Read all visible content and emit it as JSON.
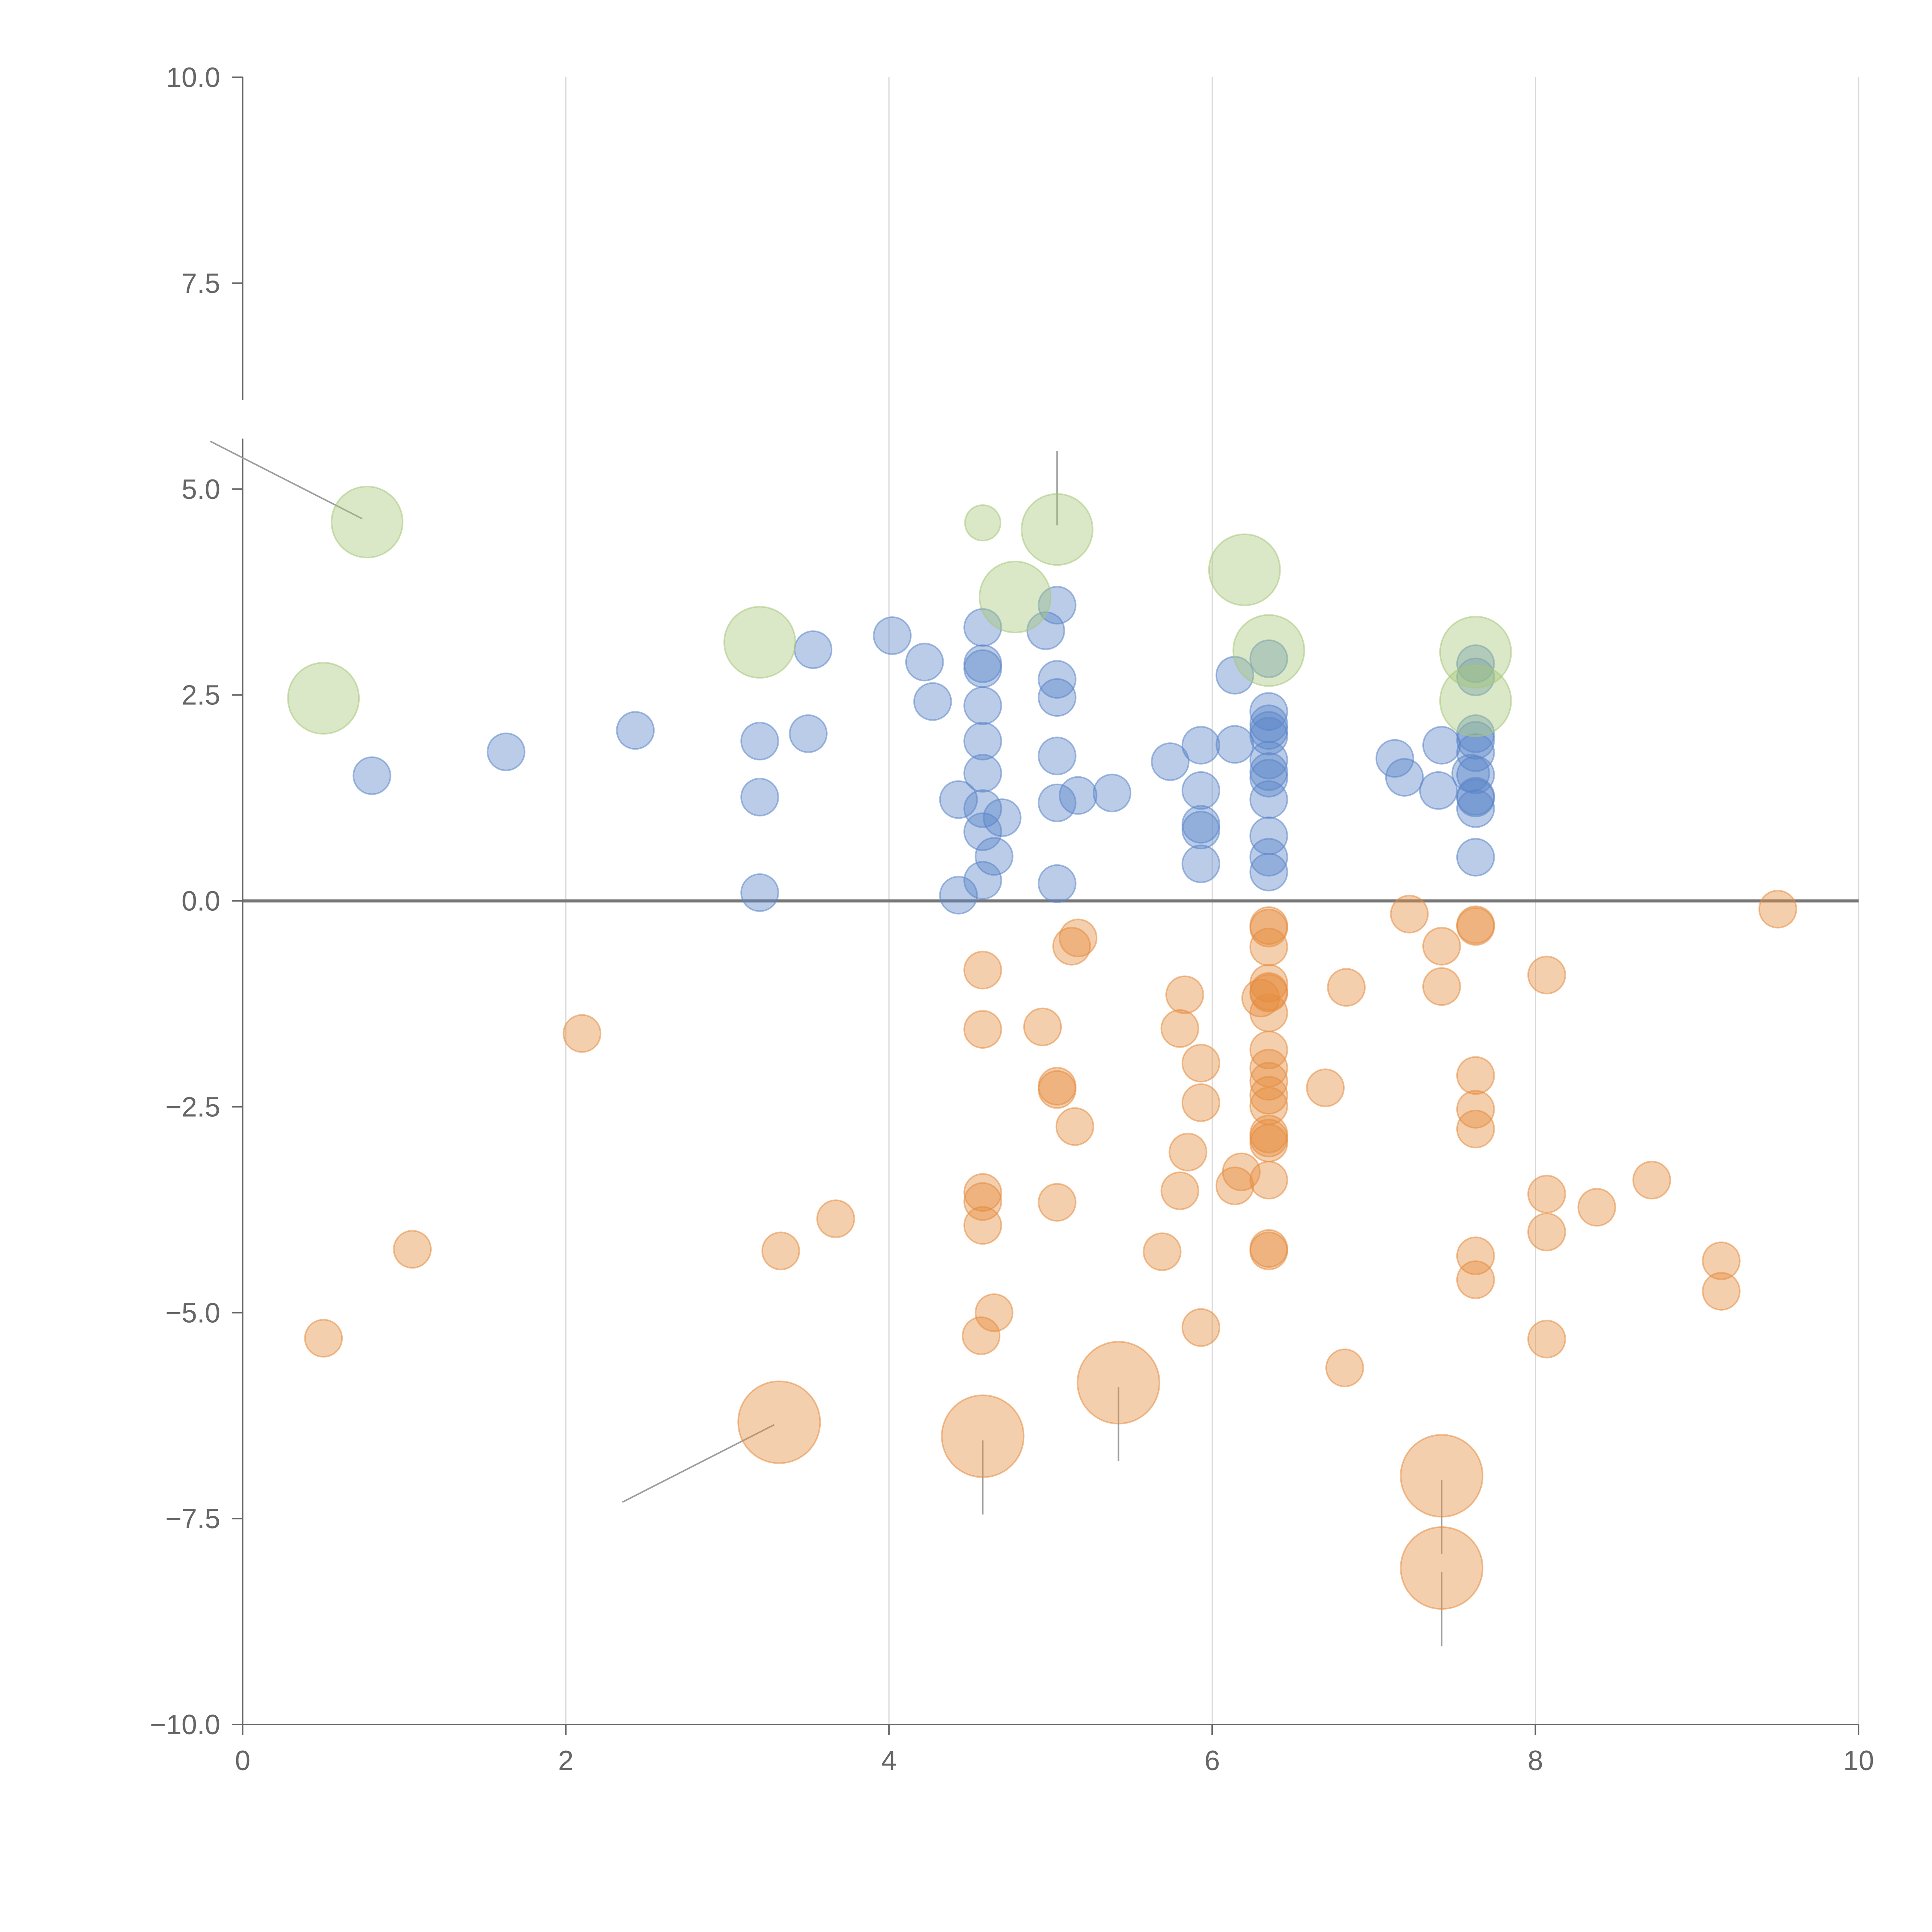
{
  "chart_data": {
    "type": "scatter",
    "title": "",
    "xlabel": "",
    "ylabel": "",
    "xlim": [
      0,
      10
    ],
    "ylim": [
      -10,
      10
    ],
    "xticks": [
      0,
      2,
      4,
      6,
      8,
      10
    ],
    "yticks": [
      -10,
      -7.5,
      -5,
      -2.5,
      0,
      2.5,
      5,
      7.5,
      10
    ],
    "xtick_labels": [
      "0",
      "2",
      "4",
      "6",
      "8",
      "10"
    ],
    "ytick_labels": [
      "−10.0",
      "−7.5",
      "−5.0",
      "−2.5",
      "0.0",
      "2.5",
      "5.0",
      "7.5",
      "10.0"
    ],
    "grid": "vertical gridlines at x ticks",
    "zero_line": 0,
    "colors": {
      "positive": "#5b85c8",
      "negative": "#e58c3f",
      "highlight": "#a7c77a",
      "axis": "#666666",
      "grid": "#d9d9d9",
      "zero": "#777777",
      "leader": "#9e9e9e"
    },
    "series": [
      {
        "name": "positive",
        "size": "small",
        "points": [
          [
            0.8,
            1.52
          ],
          [
            1.63,
            1.81
          ],
          [
            2.43,
            2.07
          ],
          [
            3.2,
            1.94
          ],
          [
            3.2,
            1.26
          ],
          [
            3.2,
            0.1
          ],
          [
            3.5,
            2.03
          ],
          [
            3.53,
            3.05
          ],
          [
            4.02,
            3.22
          ],
          [
            4.22,
            2.9
          ],
          [
            4.27,
            2.42
          ],
          [
            4.43,
            1.23
          ],
          [
            4.43,
            0.07
          ],
          [
            4.58,
            3.32
          ],
          [
            4.58,
            2.88
          ],
          [
            4.58,
            2.82
          ],
          [
            4.58,
            2.37
          ],
          [
            4.58,
            1.94
          ],
          [
            4.58,
            1.55
          ],
          [
            4.58,
            1.12
          ],
          [
            4.58,
            0.84
          ],
          [
            4.58,
            0.25
          ],
          [
            4.65,
            0.54
          ],
          [
            4.7,
            1.01
          ],
          [
            4.97,
            3.28
          ],
          [
            5.04,
            3.59
          ],
          [
            5.04,
            2.69
          ],
          [
            5.04,
            2.47
          ],
          [
            5.04,
            1.76
          ],
          [
            5.04,
            1.19
          ],
          [
            5.04,
            0.21
          ],
          [
            5.17,
            1.28
          ],
          [
            5.38,
            1.31
          ],
          [
            5.74,
            1.69
          ],
          [
            5.93,
            1.89
          ],
          [
            5.93,
            1.34
          ],
          [
            5.93,
            0.93
          ],
          [
            5.93,
            0.86
          ],
          [
            5.93,
            0.45
          ],
          [
            6.14,
            2.74
          ],
          [
            6.14,
            1.9
          ],
          [
            6.35,
            2.94
          ],
          [
            6.35,
            2.3
          ],
          [
            6.35,
            2.15
          ],
          [
            6.35,
            2.07
          ],
          [
            6.35,
            2.0
          ],
          [
            6.35,
            1.71
          ],
          [
            6.35,
            1.57
          ],
          [
            6.35,
            1.49
          ],
          [
            6.35,
            1.23
          ],
          [
            6.35,
            0.79
          ],
          [
            6.35,
            0.53
          ],
          [
            6.35,
            0.35
          ],
          [
            7.13,
            1.73
          ],
          [
            7.19,
            1.5
          ],
          [
            7.42,
            1.89
          ],
          [
            7.4,
            1.34
          ],
          [
            7.6,
            1.55
          ],
          [
            7.63,
            2.88
          ],
          [
            7.63,
            2.72
          ],
          [
            7.63,
            2.03
          ],
          [
            7.63,
            1.95
          ],
          [
            7.63,
            1.8
          ],
          [
            7.63,
            1.53
          ],
          [
            7.63,
            1.27
          ],
          [
            7.63,
            1.25
          ],
          [
            7.63,
            1.12
          ],
          [
            7.63,
            0.53
          ]
        ]
      },
      {
        "name": "negative",
        "size": "small",
        "points": [
          [
            0.5,
            -5.31
          ],
          [
            1.05,
            -4.23
          ],
          [
            2.1,
            -1.61
          ],
          [
            3.33,
            -4.25
          ],
          [
            3.67,
            -3.86
          ],
          [
            4.58,
            -0.84
          ],
          [
            4.58,
            -1.56
          ],
          [
            4.58,
            -3.54
          ],
          [
            4.58,
            -3.65
          ],
          [
            4.58,
            -3.94
          ],
          [
            4.57,
            -5.28
          ],
          [
            4.65,
            -5.0
          ],
          [
            4.95,
            -1.53
          ],
          [
            5.04,
            -2.25
          ],
          [
            5.04,
            -2.29
          ],
          [
            5.04,
            -3.66
          ],
          [
            5.13,
            -0.55
          ],
          [
            5.17,
            -0.45
          ],
          [
            5.15,
            -2.74
          ],
          [
            5.69,
            -4.26
          ],
          [
            5.8,
            -1.55
          ],
          [
            5.8,
            -3.52
          ],
          [
            5.83,
            -1.14
          ],
          [
            5.85,
            -3.05
          ],
          [
            5.93,
            -1.97
          ],
          [
            5.93,
            -2.45
          ],
          [
            5.93,
            -5.18
          ],
          [
            6.14,
            -3.46
          ],
          [
            6.18,
            -3.29
          ],
          [
            6.3,
            -1.18
          ],
          [
            6.35,
            -0.3
          ],
          [
            6.35,
            -0.33
          ],
          [
            6.35,
            -0.56
          ],
          [
            6.35,
            -1.0
          ],
          [
            6.35,
            -1.1
          ],
          [
            6.35,
            -1.12
          ],
          [
            6.35,
            -1.36
          ],
          [
            6.35,
            -1.81
          ],
          [
            6.35,
            -2.03
          ],
          [
            6.35,
            -2.19
          ],
          [
            6.35,
            -2.36
          ],
          [
            6.35,
            -2.49
          ],
          [
            6.35,
            -2.83
          ],
          [
            6.35,
            -2.88
          ],
          [
            6.35,
            -2.94
          ],
          [
            6.35,
            -3.39
          ],
          [
            6.35,
            -4.22
          ],
          [
            6.35,
            -4.25
          ],
          [
            6.7,
            -2.27
          ],
          [
            6.82,
            -5.67
          ],
          [
            6.83,
            -1.05
          ],
          [
            7.22,
            -0.16
          ],
          [
            7.42,
            -0.55
          ],
          [
            7.42,
            -1.04
          ],
          [
            7.63,
            -0.29
          ],
          [
            7.63,
            -0.31
          ],
          [
            7.63,
            -2.12
          ],
          [
            7.63,
            -2.53
          ],
          [
            7.63,
            -2.77
          ],
          [
            7.63,
            -4.31
          ],
          [
            7.63,
            -4.6
          ],
          [
            8.07,
            -0.9
          ],
          [
            8.07,
            -3.56
          ],
          [
            8.07,
            -4.02
          ],
          [
            8.07,
            -5.32
          ],
          [
            8.38,
            -3.72
          ],
          [
            8.72,
            -3.39
          ],
          [
            9.15,
            -4.37
          ],
          [
            9.15,
            -4.74
          ],
          [
            9.5,
            -0.1
          ]
        ]
      },
      {
        "name": "highlight-positive",
        "size": "large",
        "points": [
          [
            0.5,
            2.46
          ],
          [
            0.77,
            4.6
          ],
          [
            3.2,
            3.14
          ],
          [
            4.58,
            4.59
          ],
          [
            4.78,
            3.69
          ],
          [
            5.04,
            4.51
          ],
          [
            6.2,
            4.02
          ],
          [
            6.35,
            3.04
          ],
          [
            7.63,
            3.02
          ],
          [
            7.63,
            2.43
          ]
        ]
      },
      {
        "name": "highlight-negative",
        "size": "large",
        "points": [
          [
            3.32,
            -6.33
          ],
          [
            4.58,
            -6.5
          ],
          [
            5.42,
            -5.85
          ],
          [
            7.42,
            -6.98
          ],
          [
            7.42,
            -8.1
          ]
        ]
      }
    ],
    "small_points_large_size_exceptions": [
      [
        4.58,
        4.59
      ]
    ],
    "leader_lines": [
      [
        [
          0.74,
          4.64
        ],
        [
          -0.2,
          5.58
        ]
      ],
      [
        [
          5.04,
          4.56
        ],
        [
          5.04,
          5.46
        ]
      ],
      [
        [
          3.29,
          -6.36
        ],
        [
          2.35,
          -7.3
        ]
      ],
      [
        [
          4.58,
          -6.55
        ],
        [
          4.58,
          -7.45
        ]
      ],
      [
        [
          5.42,
          -5.9
        ],
        [
          5.42,
          -6.8
        ]
      ],
      [
        [
          7.42,
          -7.03
        ],
        [
          7.42,
          -7.93
        ]
      ],
      [
        [
          7.42,
          -8.15
        ],
        [
          7.42,
          -9.05
        ]
      ]
    ]
  }
}
